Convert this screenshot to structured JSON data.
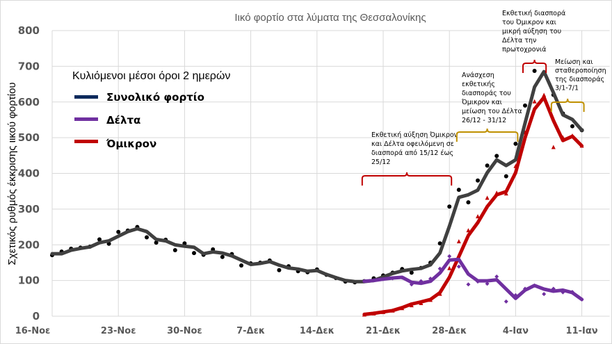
{
  "chart_data": {
    "type": "line",
    "title": "Ιικό φορτίο στα λύματα της Θεσσαλονίκης",
    "xlabel": "",
    "ylabel": "Σχετικός ρυθμός έκκρισης ιικού φορτίου",
    "ylim": [
      0,
      800
    ],
    "yticks": [
      "0",
      "100",
      "200",
      "300",
      "400",
      "500",
      "600",
      "700",
      "800"
    ],
    "xtick_labels": [
      "16-Νοε",
      "23-Νοε",
      "30-Νοε",
      "7-Δεκ",
      "14-Δεκ",
      "21-Δεκ",
      "28-Δεκ",
      "4-Ιαν",
      "11-Ιαν"
    ],
    "grid": true,
    "legend": {
      "title": "Κυλιόμενοι μέσοι όροι 2 ημερών",
      "placement": "top-left",
      "items": [
        "Συνολικό φορτίο",
        "Δέλτα",
        "Όμικρον"
      ]
    },
    "x": [
      "16-Νοε",
      "17-Νοε",
      "18-Νοε",
      "19-Νοε",
      "20-Νοε",
      "21-Νοε",
      "22-Νοε",
      "23-Νοε",
      "24-Νοε",
      "25-Νοε",
      "26-Νοε",
      "27-Νοε",
      "28-Νοε",
      "29-Νοε",
      "30-Νοε",
      "1-Δεκ",
      "2-Δεκ",
      "3-Δεκ",
      "4-Δεκ",
      "5-Δεκ",
      "6-Δεκ",
      "7-Δεκ",
      "8-Δεκ",
      "9-Δεκ",
      "10-Δεκ",
      "11-Δεκ",
      "12-Δεκ",
      "13-Δεκ",
      "14-Δεκ",
      "15-Δεκ",
      "16-Δεκ",
      "17-Δεκ",
      "18-Δεκ",
      "19-Δεκ",
      "20-Δεκ",
      "21-Δεκ",
      "22-Δεκ",
      "23-Δεκ",
      "24-Δεκ",
      "25-Δεκ",
      "26-Δεκ",
      "27-Δεκ",
      "28-Δεκ",
      "29-Δεκ",
      "30-Δεκ",
      "31-Δεκ",
      "1-Ιαν",
      "2-Ιαν",
      "3-Ιαν",
      "4-Ιαν",
      "5-Ιαν",
      "6-Ιαν",
      "7-Ιαν",
      "8-Ιαν",
      "9-Ιαν",
      "10-Ιαν",
      "11-Ιαν"
    ],
    "series": [
      {
        "name": "Συνολικό φορτίο",
        "line_color": "#404040",
        "legend_color": "#0d2a5c",
        "marker": "circle",
        "marker_color": "#000000",
        "moving_average": [
          175,
          175,
          185,
          190,
          194,
          206,
          211,
          224,
          237,
          245,
          237,
          215,
          211,
          200,
          196,
          193,
          175,
          180,
          177,
          169,
          157,
          145,
          148,
          153,
          143,
          135,
          132,
          126,
          128,
          117,
          108,
          100,
          97,
          97,
          100,
          110,
          120,
          127,
          131,
          134,
          144,
          177,
          252,
          333,
          340,
          353,
          402,
          438,
          422,
          438,
          541,
          642,
          685,
          626,
          564,
          551,
          521
        ],
        "daily": [
          171,
          181,
          189,
          192,
          195,
          215,
          203,
          236,
          240,
          250,
          221,
          206,
          214,
          185,
          204,
          177,
          172,
          187,
          166,
          174,
          142,
          148,
          150,
          156,
          129,
          140,
          126,
          123,
          131,
          116,
          107,
          97,
          95,
          98,
          106,
          114,
          122,
          132,
          122,
          135,
          150,
          204,
          307,
          354,
          319,
          380,
          422,
          449,
          392,
          483,
          590,
          687,
          680,
          620,
          568,
          532,
          521
        ]
      },
      {
        "name": "Δέλτα",
        "line_color": "#7030a0",
        "legend_color": "#7030a0",
        "marker": "diamond",
        "marker_color": "#7030a0",
        "moving_average": [
          null,
          null,
          null,
          null,
          null,
          null,
          null,
          null,
          null,
          null,
          null,
          null,
          null,
          null,
          null,
          null,
          null,
          null,
          null,
          null,
          null,
          null,
          null,
          null,
          null,
          null,
          null,
          null,
          null,
          null,
          null,
          null,
          null,
          98,
          100,
          104,
          107,
          109,
          95,
          92,
          98,
          121,
          157,
          159,
          118,
          99,
          99,
          102,
          76,
          50,
          73,
          86,
          76,
          70,
          73,
          66,
          47
        ],
        "daily": [
          null,
          null,
          null,
          null,
          null,
          null,
          null,
          null,
          null,
          null,
          null,
          null,
          null,
          null,
          null,
          null,
          null,
          null,
          null,
          null,
          null,
          null,
          null,
          null,
          null,
          null,
          null,
          null,
          null,
          null,
          null,
          null,
          null,
          98,
          101,
          104,
          106,
          108,
          89,
          98,
          105,
          133,
          168,
          139,
          89,
          97,
          91,
          111,
          41,
          59,
          77,
          86,
          62,
          77,
          67,
          68,
          47
        ]
      },
      {
        "name": "Όμικρον",
        "line_color": "#c00000",
        "legend_color": "#c00000",
        "marker": "triangle",
        "marker_color": "#c00000",
        "moving_average": [
          null,
          null,
          null,
          null,
          null,
          null,
          null,
          null,
          null,
          null,
          null,
          null,
          null,
          null,
          null,
          null,
          null,
          null,
          null,
          null,
          null,
          null,
          null,
          null,
          null,
          null,
          null,
          null,
          null,
          null,
          null,
          null,
          null,
          5,
          8,
          12,
          16,
          24,
          34,
          40,
          47,
          66,
          109,
          167,
          226,
          262,
          307,
          340,
          349,
          402,
          500,
          580,
          613,
          548,
          492,
          504,
          477
        ],
        "daily": [
          null,
          null,
          null,
          null,
          null,
          null,
          null,
          null,
          null,
          null,
          null,
          null,
          null,
          null,
          null,
          null,
          null,
          null,
          null,
          null,
          null,
          null,
          null,
          null,
          null,
          null,
          null,
          null,
          null,
          null,
          null,
          null,
          null,
          4,
          7,
          11,
          15,
          22,
          30,
          36,
          45,
          62,
          134,
          209,
          240,
          279,
          331,
          345,
          343,
          420,
          514,
          601,
          619,
          473,
          500,
          505,
          477
        ]
      }
    ],
    "annotations": [
      {
        "lines": [
          "Εκθετική αύξηση Όμικρον",
          "και Δέλτα οφειλόμενη σε",
          "διασπορά από 15/12 έως",
          "25/12"
        ],
        "bracket_color": "#c00000",
        "from": "19-Δεκ",
        "to": "28-Δεκ"
      },
      {
        "lines": [
          "Ανάσχεση",
          "εκθετικής",
          "διασποράς του",
          "Όμικρον και",
          "μείωση του Δέλτα",
          "26/12 - 31/12"
        ],
        "bracket_color": "#bf9000",
        "from": "29-Δεκ",
        "to": "4-Ιαν"
      },
      {
        "lines": [
          "Εκθετική διασπορά",
          "του Όμικρον και",
          "μικρή αύξηση του",
          "Δέλτα την",
          "πρωτοχρονιά"
        ],
        "bracket_color": "#c00000",
        "from": "5-Ιαν",
        "to": "7-Ιαν"
      },
      {
        "lines": [
          "Μείωση και",
          "σταθεροποίηση",
          "της διασποράς",
          "3/1-7/1"
        ],
        "bracket_color": "#bf9000",
        "from": "8-Ιαν",
        "to": "11-Ιαν"
      }
    ]
  }
}
